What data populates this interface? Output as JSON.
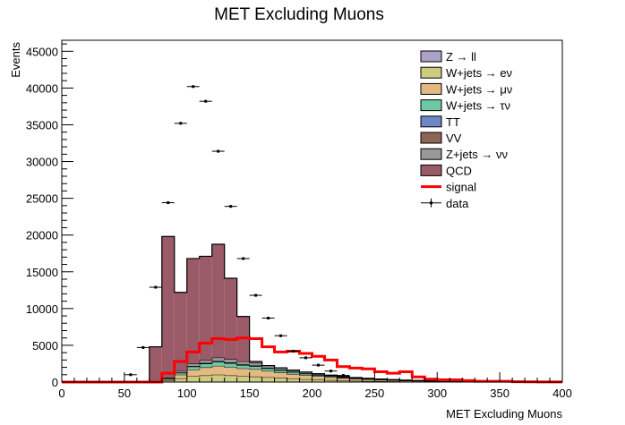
{
  "chart_data": {
    "type": "bar",
    "stacked": true,
    "title": "MET Excluding Muons",
    "xlabel": "MET Excluding Muons",
    "ylabel": "Events",
    "xlim": [
      0,
      400
    ],
    "ylim": [
      0,
      46500
    ],
    "bin_width": 10,
    "x_ticks": [
      0,
      50,
      100,
      150,
      200,
      250,
      300,
      350,
      400
    ],
    "y_ticks": [
      0,
      5000,
      10000,
      15000,
      20000,
      25000,
      30000,
      35000,
      40000,
      45000
    ],
    "x_edges": [
      0,
      10,
      20,
      30,
      40,
      50,
      60,
      70,
      80,
      90,
      100,
      110,
      120,
      130,
      140,
      150,
      160,
      170,
      180,
      190,
      200,
      210,
      220,
      230,
      240,
      250,
      260,
      270,
      280,
      290,
      300,
      310,
      320,
      330,
      340,
      350,
      360,
      370,
      380,
      390,
      400
    ],
    "legend_position": "top-right",
    "stack_series": [
      {
        "name": "W+jets → eν",
        "color": "#cccc80",
        "values": [
          0,
          0,
          0,
          0,
          0,
          0,
          0,
          0,
          200,
          500,
          800,
          900,
          1000,
          900,
          800,
          750,
          650,
          550,
          450,
          380,
          320,
          260,
          210,
          170,
          140,
          110,
          90,
          70,
          55,
          45,
          35,
          28,
          22,
          18,
          14,
          11,
          9,
          7,
          5,
          4
        ]
      },
      {
        "name": "W+jets → μν",
        "color": "#e5b984",
        "values": [
          0,
          0,
          0,
          0,
          0,
          0,
          0,
          0,
          200,
          500,
          900,
          1100,
          1200,
          1150,
          1050,
          1000,
          850,
          750,
          650,
          550,
          470,
          400,
          330,
          270,
          220,
          180,
          150,
          120,
          95,
          75,
          60,
          48,
          38,
          30,
          24,
          19,
          15,
          12,
          9,
          7
        ]
      },
      {
        "name": "W+jets → τν",
        "color": "#6dc8a3",
        "values": [
          0,
          0,
          0,
          0,
          0,
          0,
          0,
          0,
          100,
          250,
          400,
          500,
          550,
          500,
          450,
          400,
          350,
          300,
          250,
          200,
          160,
          130,
          100,
          80,
          65,
          50,
          40,
          32,
          25,
          20,
          16,
          12,
          10,
          8,
          6,
          5,
          4,
          3,
          2,
          2
        ]
      },
      {
        "name": "TT",
        "color": "#6f86c8",
        "values": [
          0,
          0,
          0,
          0,
          0,
          0,
          0,
          0,
          10,
          25,
          40,
          50,
          60,
          60,
          55,
          50,
          45,
          40,
          35,
          30,
          25,
          20,
          17,
          14,
          11,
          9,
          7,
          6,
          5,
          4,
          3,
          3,
          2,
          2,
          1,
          1,
          1,
          1,
          1,
          1
        ]
      },
      {
        "name": "VV",
        "color": "#8e6656",
        "values": [
          0,
          0,
          0,
          0,
          0,
          0,
          0,
          0,
          10,
          25,
          40,
          50,
          60,
          60,
          55,
          50,
          45,
          40,
          35,
          30,
          25,
          20,
          17,
          14,
          11,
          9,
          7,
          6,
          5,
          4,
          3,
          3,
          2,
          2,
          1,
          1,
          1,
          1,
          1,
          1
        ]
      },
      {
        "name": "Z+jets → νν",
        "color": "#999999",
        "values": [
          0,
          0,
          0,
          0,
          0,
          0,
          0,
          0,
          80,
          200,
          320,
          400,
          460,
          440,
          400,
          350,
          300,
          250,
          200,
          160,
          130,
          100,
          80,
          65,
          50,
          40,
          32,
          25,
          20,
          16,
          12,
          10,
          8,
          6,
          5,
          4,
          3,
          2,
          2,
          1
        ]
      },
      {
        "name": "QCD",
        "color": "#9a5a68",
        "values": [
          0,
          0,
          0,
          0,
          0,
          0,
          0,
          4800,
          19200,
          10700,
          14300,
          14100,
          15400,
          11000,
          6100,
          200,
          0,
          0,
          0,
          0,
          0,
          0,
          0,
          0,
          0,
          0,
          0,
          0,
          0,
          0,
          0,
          0,
          0,
          0,
          0,
          0,
          0,
          0,
          0,
          0
        ]
      },
      {
        "name": "Z → ll",
        "color": "#aca2c6",
        "values": [
          0,
          0,
          0,
          0,
          0,
          0,
          0,
          0,
          5,
          10,
          20,
          25,
          30,
          30,
          25,
          20,
          18,
          15,
          12,
          10,
          8,
          6,
          5,
          4,
          3,
          3,
          2,
          2,
          1,
          1,
          1,
          1,
          0,
          0,
          0,
          0,
          0,
          0,
          0,
          0
        ]
      }
    ],
    "signal": {
      "name": "signal",
      "color": "#ff0000",
      "values": [
        0,
        0,
        0,
        0,
        0,
        0,
        0,
        0,
        1200,
        2800,
        4100,
        5300,
        5900,
        5800,
        6000,
        5900,
        4800,
        4100,
        4200,
        3900,
        3500,
        3000,
        2100,
        1900,
        1800,
        1400,
        1200,
        1400,
        700,
        400,
        300,
        300,
        200,
        100,
        100,
        100,
        50,
        30,
        20,
        10
      ]
    },
    "data": {
      "name": "data",
      "x": [
        55,
        65,
        75,
        85,
        95,
        105,
        115,
        125,
        135,
        145,
        155,
        165,
        175,
        185,
        195,
        205,
        215,
        225
      ],
      "y": [
        1000,
        4700,
        12900,
        24400,
        35200,
        40200,
        38200,
        31400,
        23900,
        16800,
        11800,
        8700,
        6300,
        4200,
        3300,
        2300,
        1500,
        900
      ]
    },
    "legend": [
      {
        "label": "Z → ll",
        "kind": "box",
        "color": "#aca2c6"
      },
      {
        "label": "W+jets → eν",
        "kind": "box",
        "color": "#cccc80"
      },
      {
        "label": "W+jets → μν",
        "kind": "box",
        "color": "#e5b984"
      },
      {
        "label": "W+jets → τν",
        "kind": "box",
        "color": "#6dc8a3"
      },
      {
        "label": "TT",
        "kind": "box",
        "color": "#6f86c8"
      },
      {
        "label": "VV",
        "kind": "box",
        "color": "#8e6656"
      },
      {
        "label": "Z+jets → νν",
        "kind": "box",
        "color": "#999999"
      },
      {
        "label": "QCD",
        "kind": "box",
        "color": "#9a5a68"
      },
      {
        "label": "signal",
        "kind": "line",
        "color": "#ff0000"
      },
      {
        "label": "data",
        "kind": "marker",
        "color": "#000000"
      }
    ]
  }
}
